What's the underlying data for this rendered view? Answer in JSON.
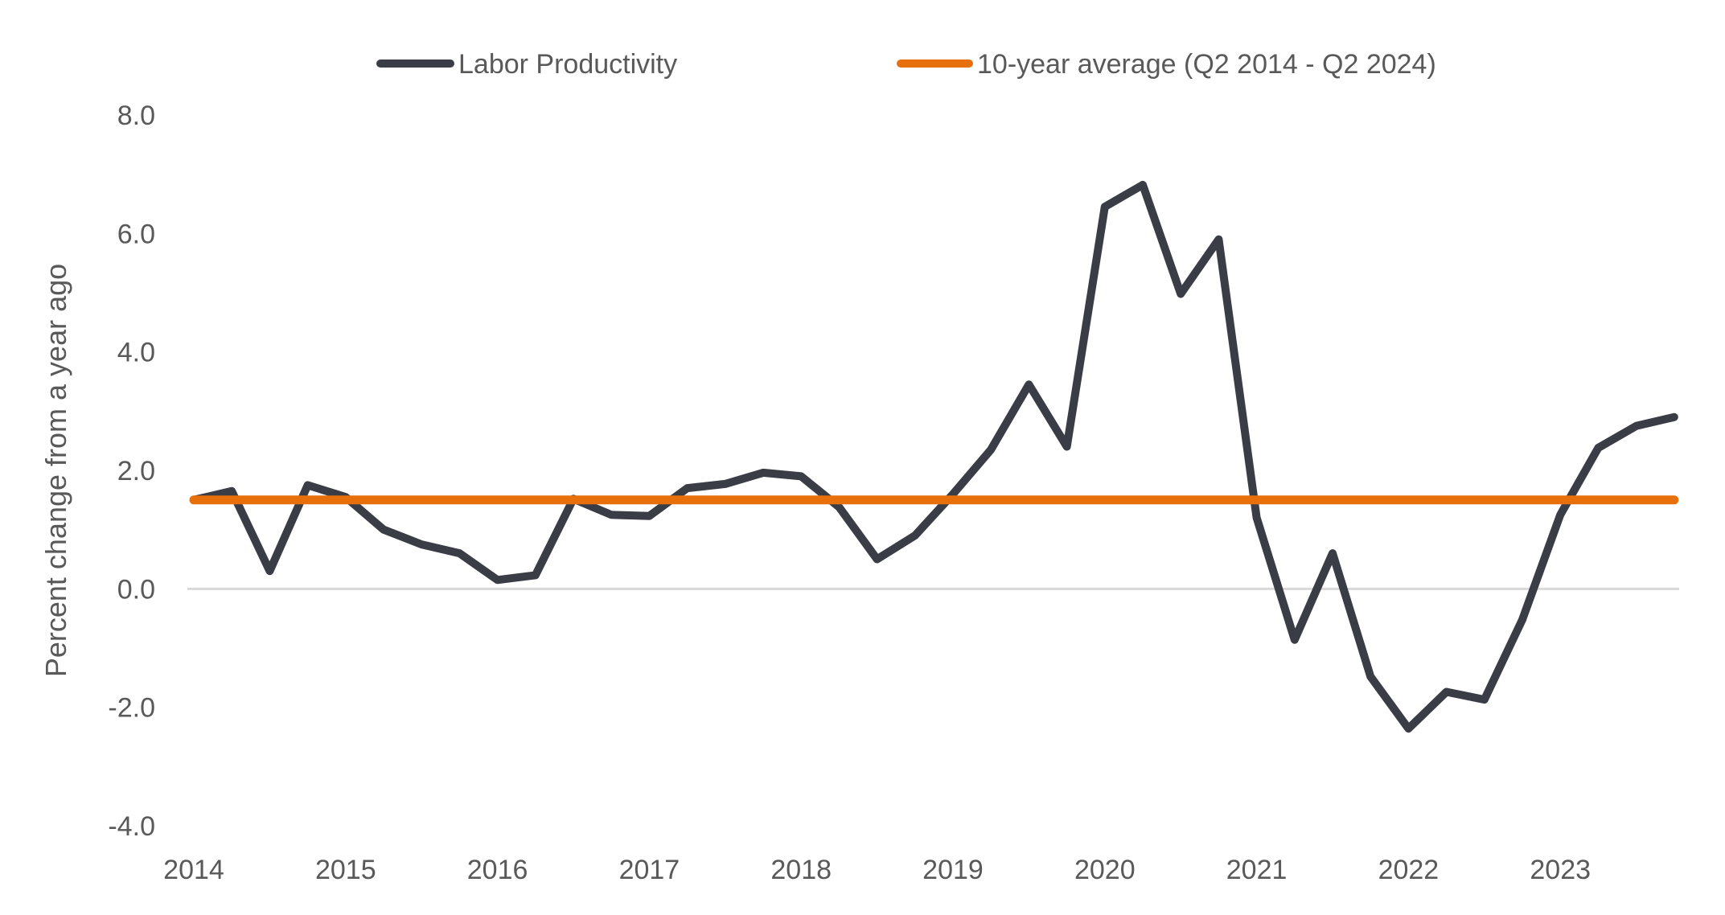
{
  "chart_data": {
    "type": "line",
    "title": "",
    "xlabel": "",
    "ylabel": "Percent change from a year ago",
    "ylim": [
      -4.0,
      8.0
    ],
    "yticks": [
      "8.0",
      "6.0",
      "4.0",
      "2.0",
      "0.0",
      "-2.0",
      "-4.0"
    ],
    "ytick_values": [
      8,
      6,
      4,
      2,
      0,
      -2,
      -4
    ],
    "xticks": [
      "2014",
      "2015",
      "2016",
      "2017",
      "2018",
      "2019",
      "2020",
      "2021",
      "2022",
      "2023"
    ],
    "grid": false,
    "zero_line": true,
    "legend_position": "top",
    "x": [
      "2014Q1",
      "2014Q2",
      "2014Q3",
      "2014Q4",
      "2015Q1",
      "2015Q2",
      "2015Q3",
      "2015Q4",
      "2016Q1",
      "2016Q2",
      "2016Q3",
      "2016Q4",
      "2017Q1",
      "2017Q2",
      "2017Q3",
      "2017Q4",
      "2018Q1",
      "2018Q2",
      "2018Q3",
      "2018Q4",
      "2019Q1",
      "2019Q2",
      "2019Q3",
      "2019Q4",
      "2020Q1",
      "2020Q2",
      "2020Q3",
      "2020Q4",
      "2021Q1",
      "2021Q2",
      "2021Q3",
      "2021Q4",
      "2022Q1",
      "2022Q2",
      "2022Q3",
      "2022Q4",
      "2023Q1",
      "2023Q2",
      "2023Q3",
      "2023Q4"
    ],
    "series": [
      {
        "name": "Labor Productivity",
        "color": "#3a3d46",
        "values": [
          1.5,
          1.65,
          0.3,
          1.75,
          1.55,
          1.0,
          0.75,
          0.6,
          0.15,
          0.23,
          1.52,
          1.25,
          1.23,
          1.7,
          1.77,
          1.96,
          1.9,
          1.38,
          0.5,
          0.9,
          1.6,
          2.35,
          3.45,
          2.4,
          6.45,
          6.82,
          4.98,
          5.9,
          1.2,
          -0.86,
          0.6,
          -1.48,
          -2.36,
          -1.74,
          -1.87,
          -0.52,
          1.25,
          2.38,
          2.75,
          2.9
        ]
      },
      {
        "name": "10-year average (Q2 2014 - Q2 2024)",
        "color": "#e8700c",
        "values": [
          1.5,
          1.5,
          1.5,
          1.5,
          1.5,
          1.5,
          1.5,
          1.5,
          1.5,
          1.5,
          1.5,
          1.5,
          1.5,
          1.5,
          1.5,
          1.5,
          1.5,
          1.5,
          1.5,
          1.5,
          1.5,
          1.5,
          1.5,
          1.5,
          1.5,
          1.5,
          1.5,
          1.5,
          1.5,
          1.5,
          1.5,
          1.5,
          1.5,
          1.5,
          1.5,
          1.5,
          1.5,
          1.5,
          1.5,
          1.5
        ]
      }
    ]
  }
}
